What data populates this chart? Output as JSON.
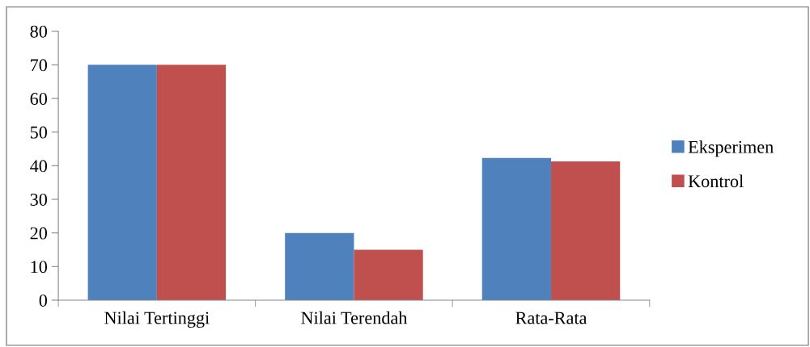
{
  "chart_data": {
    "type": "bar",
    "categories": [
      "Nilai Tertinggi",
      "Nilai Terendah",
      "Rata-Rata"
    ],
    "series": [
      {
        "name": "Eksperimen",
        "color": "#4f81bd",
        "values": [
          70,
          20,
          42.3
        ]
      },
      {
        "name": "Kontrol",
        "color": "#c0504d",
        "values": [
          70,
          15,
          41.3
        ]
      }
    ],
    "ylim": [
      0,
      80
    ],
    "yticks": [
      0,
      10,
      20,
      30,
      40,
      50,
      60,
      70,
      80
    ],
    "grid": false,
    "legend": "right"
  }
}
